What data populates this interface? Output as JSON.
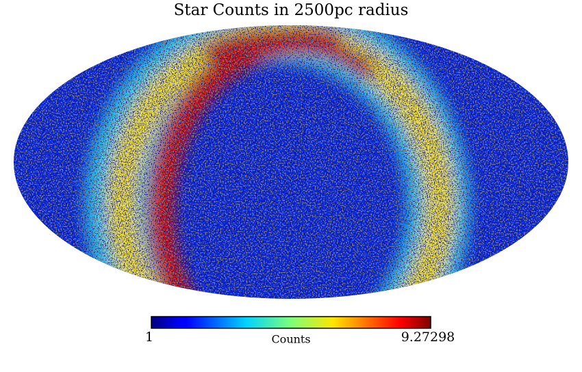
{
  "chart_data": {
    "type": "mollweide",
    "title": "Star Counts in 2500pc radius",
    "colorbar": {
      "label": "Counts",
      "min": 1,
      "max": 9.27298,
      "colormap": "jet"
    },
    "bad_color": "#808080"
  }
}
